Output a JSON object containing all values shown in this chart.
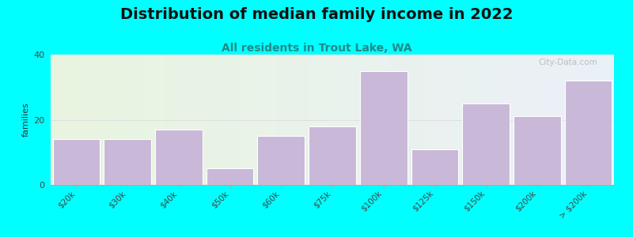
{
  "title": "Distribution of median family income in 2022",
  "subtitle": "All residents in Trout Lake, WA",
  "categories": [
    "$20k",
    "$30k",
    "$40k",
    "$50k",
    "$60k",
    "$75k",
    "$100k",
    "$125k",
    "$150k",
    "$200k",
    "> $200k"
  ],
  "values": [
    14,
    14,
    17,
    5,
    15,
    18,
    35,
    11,
    25,
    21,
    32
  ],
  "bar_color": "#c9b8d8",
  "bar_edge_color": "#ffffff",
  "background_color": "#00ffff",
  "ylabel": "families",
  "ylim": [
    0,
    40
  ],
  "yticks": [
    0,
    20,
    40
  ],
  "title_fontsize": 14,
  "subtitle_fontsize": 10,
  "watermark": "City-Data.com",
  "watermark_color": "#aaaaaa",
  "subtitle_color": "#228888",
  "title_color": "#111111",
  "tick_label_color": "#444444",
  "tick_label_fontsize": 7.5,
  "ytick_fontsize": 8,
  "ylabel_fontsize": 8,
  "grid_color": "#dddddd",
  "gradient_left_color": "#e8f5e0",
  "gradient_right_color": "#e8ecf5"
}
